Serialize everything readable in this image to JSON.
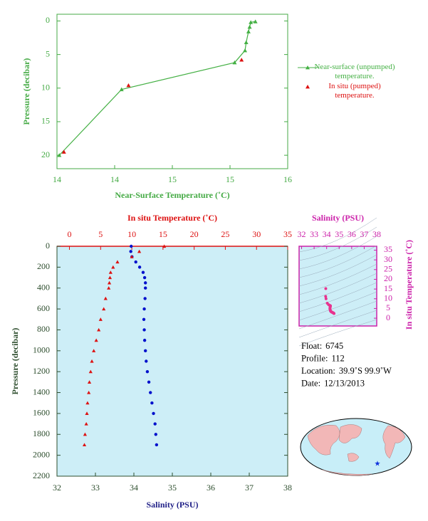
{
  "chart_data": [
    {
      "type": "line",
      "xlabel": "Near-Surface Temperature (˚C)",
      "ylabel": "Pressure (decibar)",
      "xlim": [
        14,
        16
      ],
      "xticks": [
        14,
        {
          "value": 14.5,
          "label": "14"
        },
        15,
        {
          "value": 15.5,
          "label": "15"
        },
        16
      ],
      "ylim": [
        -1,
        22
      ],
      "yticks": [
        0,
        5,
        10,
        15,
        20
      ],
      "y_inverted": true,
      "series": [
        {
          "name": "Near-surface (unpumped) temperature.",
          "color": "#44b044",
          "line": true,
          "x": [
            14.02,
            14.56,
            15.54,
            15.63,
            15.64,
            15.66,
            15.67,
            15.68,
            15.72
          ],
          "y": [
            20,
            10.2,
            6.2,
            4.4,
            3.2,
            1.6,
            0.9,
            0.2,
            0.1
          ]
        },
        {
          "name": "In situ (pumped) temperature.",
          "color": "#dd1111",
          "line": false,
          "x": [
            14.06,
            14.62,
            15.6
          ],
          "y": [
            19.5,
            9.6,
            5.8
          ]
        }
      ]
    },
    {
      "type": "profile",
      "xlabel": "Salinity (PSU)",
      "x2label": "In situ Temperature (˚C)",
      "ylabel": "Pressure (decibar)",
      "xlim": [
        32,
        38
      ],
      "xticks": [
        32,
        33,
        34,
        35,
        36,
        37,
        38
      ],
      "x2lim": [
        -2,
        35
      ],
      "x2ticks": [
        0,
        5,
        10,
        15,
        20,
        25,
        30,
        35
      ],
      "ylim": [
        0,
        2200
      ],
      "yticks": [
        0,
        200,
        400,
        600,
        800,
        1000,
        1200,
        1400,
        1600,
        1800,
        2000,
        2200
      ],
      "y_inverted": true,
      "y": [
        0,
        50,
        100,
        150,
        200,
        250,
        300,
        350,
        400,
        500,
        600,
        700,
        800,
        900,
        1000,
        1100,
        1200,
        1300,
        1400,
        1500,
        1600,
        1700,
        1800,
        1900
      ],
      "series": [
        {
          "axis": "x",
          "color": "#0010cc",
          "values": [
            33.93,
            33.92,
            33.95,
            34.05,
            34.15,
            34.24,
            34.28,
            34.3,
            34.3,
            34.29,
            34.27,
            34.26,
            34.27,
            34.28,
            34.3,
            34.32,
            34.35,
            34.39,
            34.43,
            34.47,
            34.51,
            34.55,
            34.57,
            34.59
          ]
        },
        {
          "axis": "x2",
          "color": "#dd1111",
          "values": [
            15.2,
            11.2,
            10,
            7.7,
            7,
            6.6,
            6.5,
            6.4,
            6.3,
            5.8,
            5.5,
            5,
            4.7,
            4.3,
            3.9,
            3.6,
            3.4,
            3.2,
            3.1,
            2.9,
            2.8,
            2.7,
            2.5,
            2.4
          ]
        }
      ]
    },
    {
      "type": "ts-diagram",
      "xlabel": "Salinity (PSU)",
      "ylabel": "In situ Temperature (˚C)",
      "color": "#e8338f",
      "xlim": [
        31.8,
        38
      ],
      "xticks": [
        32,
        33,
        34,
        35,
        36,
        37,
        38
      ],
      "ylim": [
        -4,
        37
      ],
      "yticks": [
        0,
        5,
        10,
        15,
        20,
        25,
        30,
        35
      ]
    }
  ],
  "info": [
    {
      "label": "Float:",
      "value": "6745"
    },
    {
      "label": "Profile:",
      "value": "112"
    },
    {
      "label": "Location:",
      "value": "39.9˚S  99.9˚W"
    },
    {
      "label": "Date:",
      "value": "12/13/2013"
    }
  ]
}
